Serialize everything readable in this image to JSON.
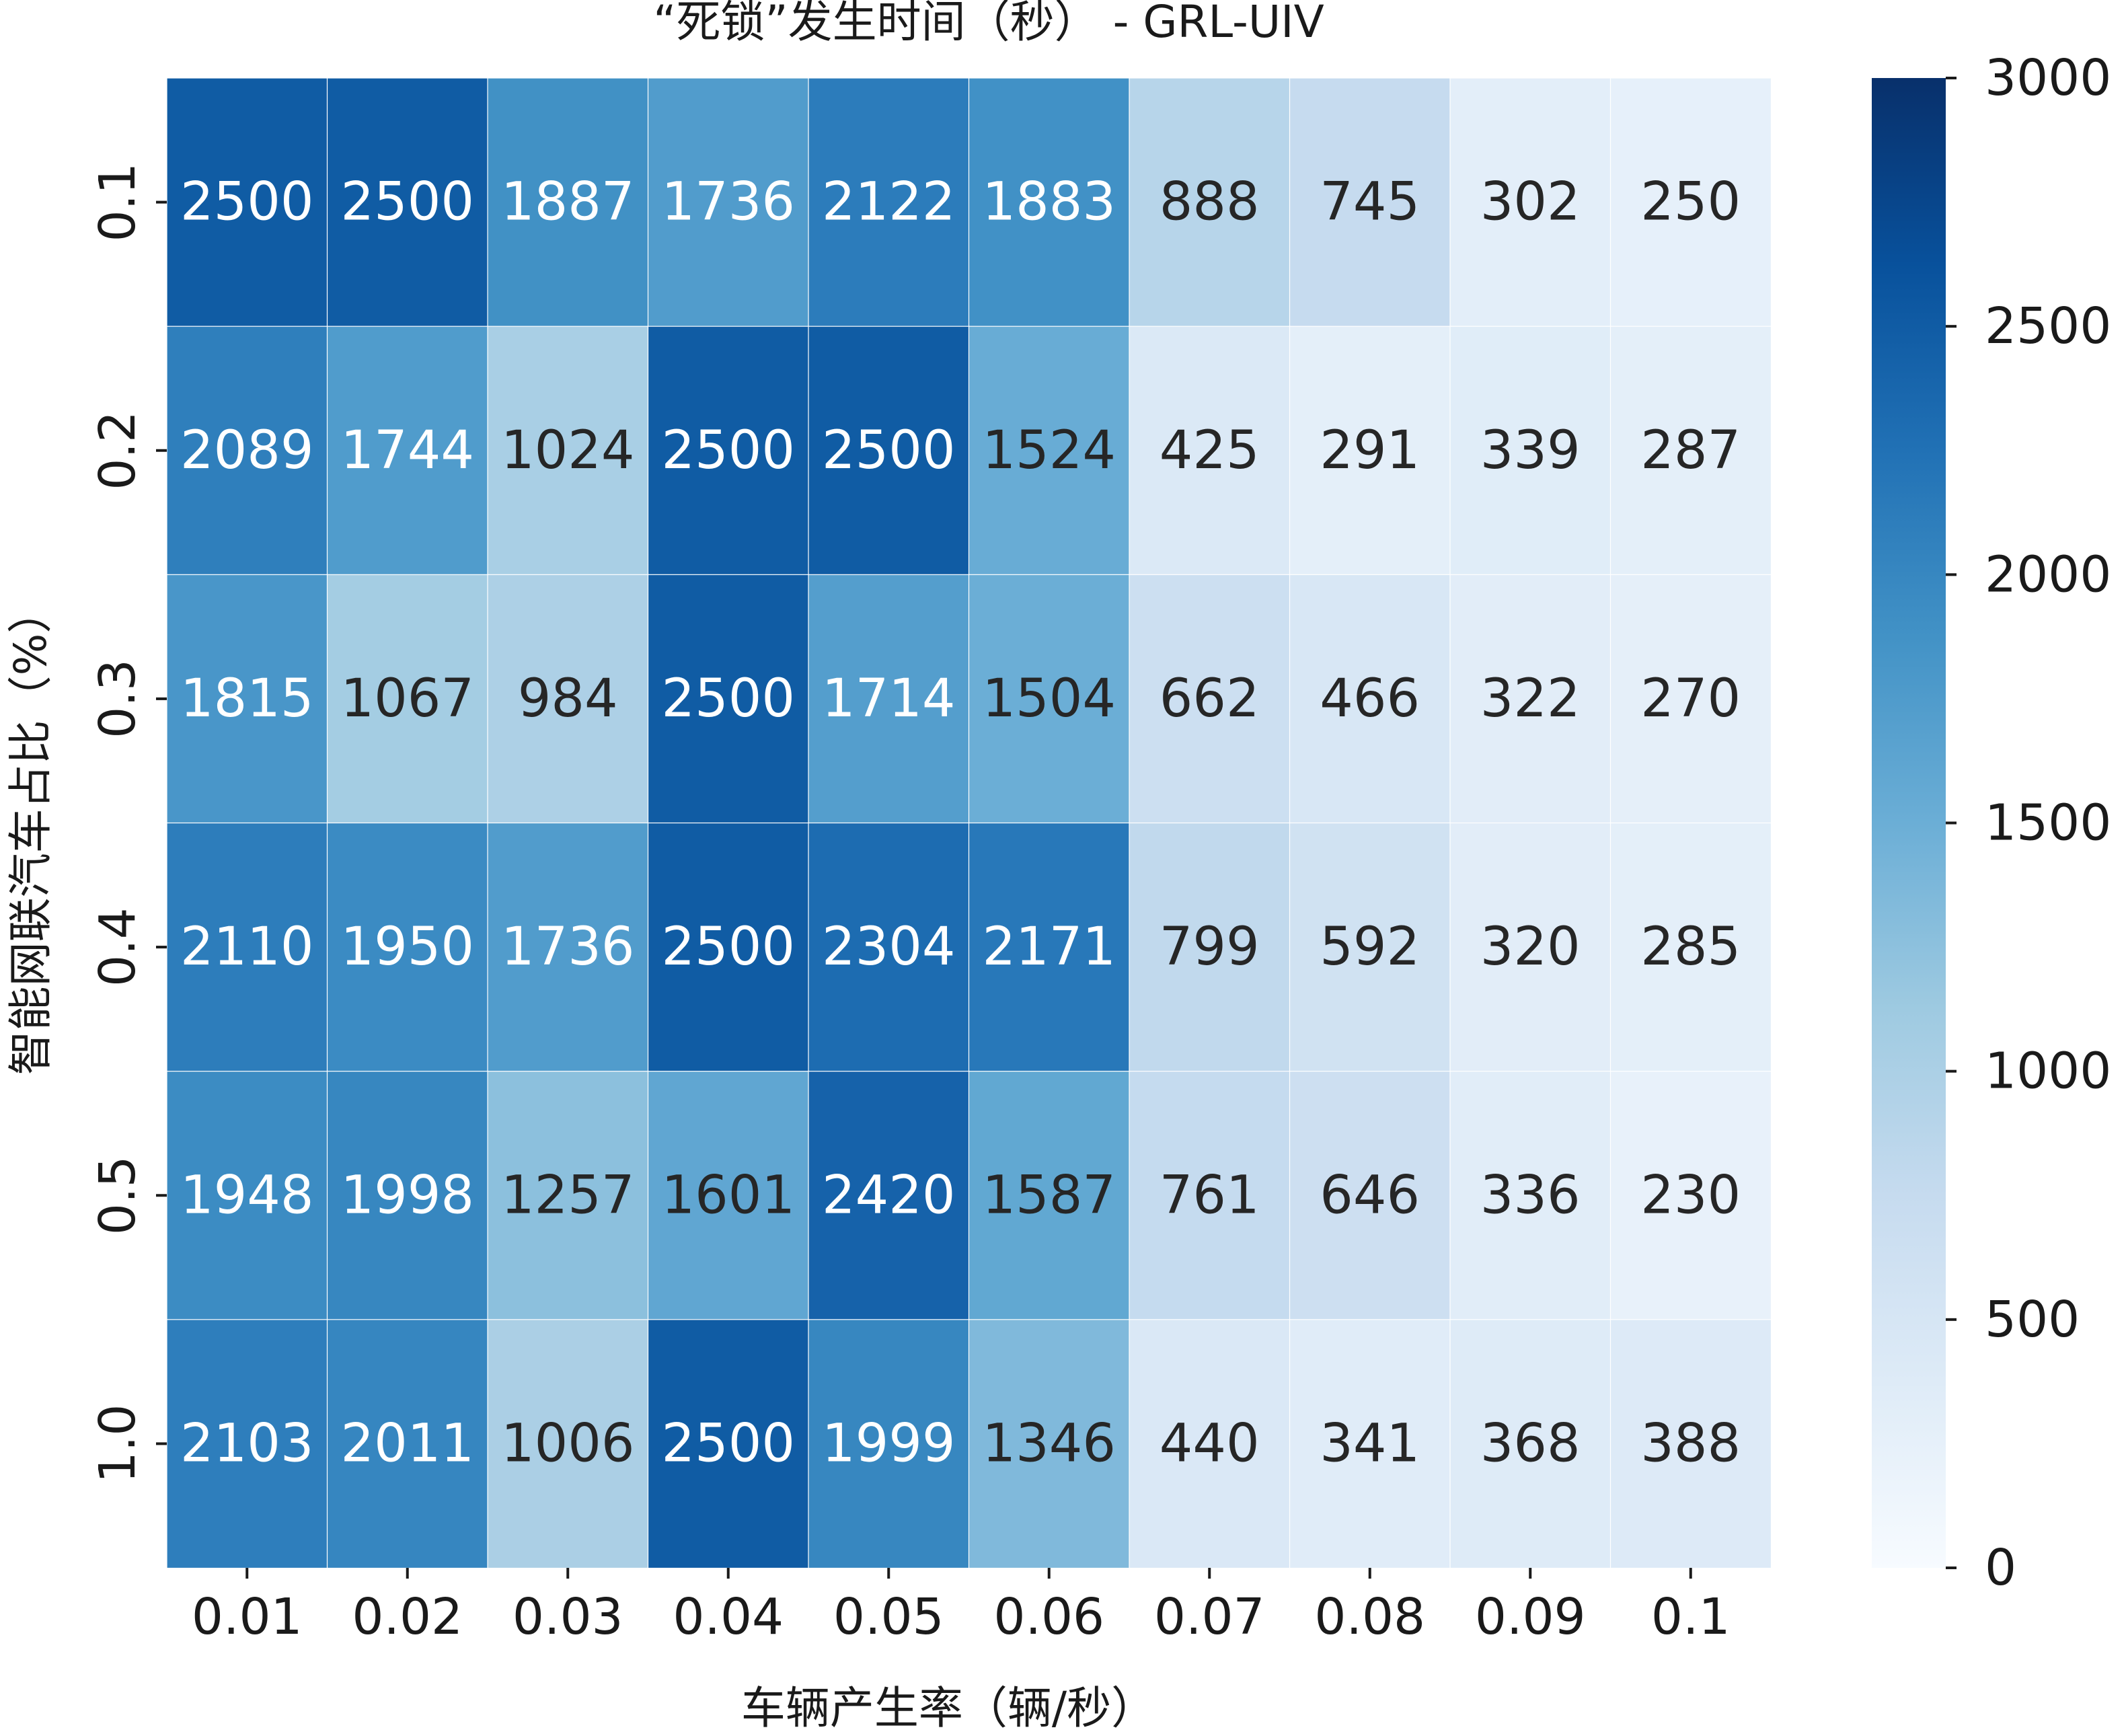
{
  "chart_data": {
    "type": "heatmap",
    "title": "“死锁”发生时间（秒） - GRL-UIV",
    "xlabel": "车辆产生率（辆/秒）",
    "ylabel": "智能网联汽车占比（%）",
    "x_categories": [
      "0.01",
      "0.02",
      "0.03",
      "0.04",
      "0.05",
      "0.06",
      "0.07",
      "0.08",
      "0.09",
      "0.1"
    ],
    "y_categories": [
      "0.1",
      "0.2",
      "0.3",
      "0.4",
      "0.5",
      "1.0"
    ],
    "values": [
      [
        2500,
        2500,
        1887,
        1736,
        2122,
        1883,
        888,
        745,
        302,
        250
      ],
      [
        2089,
        1744,
        1024,
        2500,
        2500,
        1524,
        425,
        291,
        339,
        287
      ],
      [
        1815,
        1067,
        984,
        2500,
        1714,
        1504,
        662,
        466,
        322,
        270
      ],
      [
        2110,
        1950,
        1736,
        2500,
        2304,
        2171,
        799,
        592,
        320,
        285
      ],
      [
        1948,
        1998,
        1257,
        1601,
        2420,
        1587,
        761,
        646,
        336,
        230
      ],
      [
        2103,
        2011,
        1006,
        2500,
        1999,
        1346,
        440,
        341,
        368,
        388
      ]
    ],
    "colorbar": {
      "min": 0,
      "max": 3000,
      "ticks": [
        "0",
        "500",
        "1000",
        "1500",
        "2000",
        "2500",
        "3000"
      ]
    },
    "colormap": "Blues",
    "colormap_stops": [
      "#f7fbff",
      "#deebf7",
      "#c6dbef",
      "#9ecae1",
      "#6baed6",
      "#4292c6",
      "#2171b5",
      "#08519c",
      "#08306b"
    ]
  }
}
